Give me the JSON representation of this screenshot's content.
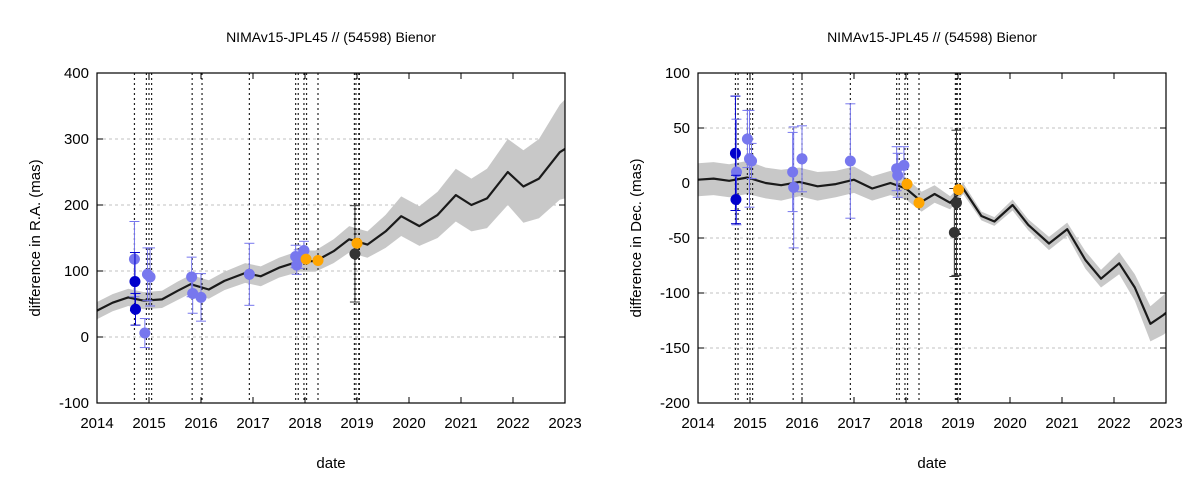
{
  "chart_data": [
    {
      "type": "line",
      "title": "NIMAv15-JPL45 // (54598) Bienor",
      "xlabel": "date",
      "ylabel": "difference in R.A. (mas)",
      "xlim": [
        2014,
        2023
      ],
      "ylim": [
        -100,
        400
      ],
      "xticks": [
        "2014",
        "2015",
        "2016",
        "2017",
        "2018",
        "2019",
        "2020",
        "2021",
        "2022",
        "2023"
      ],
      "yticks": [
        "-100",
        "0",
        "100",
        "200",
        "300",
        "400"
      ],
      "grid": "horizontal dashed",
      "colors": {
        "model": "#1a1a1a",
        "band": "#c8c8c8",
        "dark_blue": "#0000cc",
        "light_blue": "#7777ee",
        "orange": "#ffa500",
        "black": "#333333"
      },
      "series": [
        {
          "x": [
            2014.0,
            2014.3,
            2014.6,
            2014.9,
            2015.25,
            2015.55,
            2015.8,
            2016.15,
            2016.45,
            2016.85,
            2017.15,
            2017.5,
            2017.9,
            2018.2,
            2018.55,
            2018.85,
            2019.2,
            2019.55,
            2019.85,
            2020.2,
            2020.55,
            2020.9,
            2021.2,
            2021.5,
            2021.9,
            2022.2,
            2022.5,
            2022.9,
            2023.0
          ],
          "values": [
            40,
            52,
            60,
            55,
            57,
            70,
            80,
            72,
            85,
            97,
            92,
            105,
            115,
            115,
            130,
            148,
            140,
            160,
            183,
            168,
            185,
            215,
            200,
            210,
            250,
            228,
            240,
            280,
            285
          ],
          "band": [
            13,
            13,
            13,
            13,
            13,
            14,
            14,
            14,
            14,
            15,
            15,
            15,
            16,
            16,
            18,
            20,
            20,
            25,
            30,
            30,
            35,
            40,
            40,
            45,
            50,
            55,
            60,
            72,
            75
          ]
        }
      ],
      "vlines": [
        {
          "x": 2014.72,
          "dark": false
        },
        {
          "x": 2014.95,
          "dark": false
        },
        {
          "x": 2015.0,
          "dark": false
        },
        {
          "x": 2015.05,
          "dark": false
        },
        {
          "x": 2015.83,
          "dark": false
        },
        {
          "x": 2016.02,
          "dark": false
        },
        {
          "x": 2016.93,
          "dark": false
        },
        {
          "x": 2017.82,
          "dark": false
        },
        {
          "x": 2017.87,
          "dark": false
        },
        {
          "x": 2017.98,
          "dark": false
        },
        {
          "x": 2018.03,
          "dark": false
        },
        {
          "x": 2018.25,
          "dark": false
        },
        {
          "x": 2018.95,
          "dark": false
        },
        {
          "x": 2018.98,
          "dark": false
        },
        {
          "x": 2019.04,
          "dark": true
        }
      ],
      "points": [
        {
          "x": 2014.72,
          "y": 118,
          "err": 57,
          "color": "light_blue"
        },
        {
          "x": 2014.73,
          "y": 84,
          "err": 44,
          "color": "dark_blue"
        },
        {
          "x": 2014.74,
          "y": 42,
          "err": 24,
          "color": "dark_blue"
        },
        {
          "x": 2014.97,
          "y": 95,
          "err": 40,
          "color": "light_blue"
        },
        {
          "x": 2015.02,
          "y": 91,
          "err": 44,
          "color": "light_blue"
        },
        {
          "x": 2014.92,
          "y": 6,
          "err": 22,
          "color": "light_blue"
        },
        {
          "x": 2015.82,
          "y": 91,
          "err": 30,
          "color": "light_blue"
        },
        {
          "x": 2015.84,
          "y": 66,
          "err": 30,
          "color": "light_blue"
        },
        {
          "x": 2016.0,
          "y": 60,
          "err": 36,
          "color": "light_blue"
        },
        {
          "x": 2016.93,
          "y": 95,
          "err": 47,
          "color": "light_blue"
        },
        {
          "x": 2017.82,
          "y": 122,
          "err": 17,
          "color": "light_blue"
        },
        {
          "x": 2017.84,
          "y": 109,
          "err": 14,
          "color": "light_blue"
        },
        {
          "x": 2017.88,
          "y": 118,
          "err": 14,
          "color": "light_blue"
        },
        {
          "x": 2017.98,
          "y": 131,
          "err": 14,
          "color": "light_blue"
        },
        {
          "x": 2018.02,
          "y": 118,
          "err": 0,
          "color": "orange"
        },
        {
          "x": 2018.25,
          "y": 116,
          "err": 0,
          "color": "orange"
        },
        {
          "x": 2018.96,
          "y": 126,
          "err": 73,
          "color": "black"
        },
        {
          "x": 2019.0,
          "y": 142,
          "err": 0,
          "color": "orange"
        }
      ]
    },
    {
      "type": "line",
      "title": "NIMAv15-JPL45 // (54598) Bienor",
      "xlabel": "date",
      "ylabel": "difference in Dec. (mas)",
      "xlim": [
        2014,
        2023
      ],
      "ylim": [
        -200,
        100
      ],
      "xticks": [
        "2014",
        "2015",
        "2016",
        "2017",
        "2018",
        "2019",
        "2020",
        "2021",
        "2022",
        "2023"
      ],
      "yticks": [
        "-200",
        "-150",
        "-100",
        "-50",
        "0",
        "50",
        "100"
      ],
      "grid": "horizontal dashed",
      "colors": {
        "model": "#1a1a1a",
        "band": "#c8c8c8",
        "dark_blue": "#0000cc",
        "light_blue": "#7777ee",
        "orange": "#ffa500",
        "black": "#333333"
      },
      "series": [
        {
          "x": [
            2014.0,
            2014.3,
            2014.6,
            2014.95,
            2015.3,
            2015.6,
            2015.95,
            2016.3,
            2016.65,
            2017.0,
            2017.35,
            2017.7,
            2018.0,
            2018.3,
            2018.55,
            2018.85,
            2019.1,
            2019.45,
            2019.7,
            2020.05,
            2020.35,
            2020.75,
            2021.1,
            2021.45,
            2021.75,
            2022.1,
            2022.4,
            2022.7,
            2022.95,
            2023.0
          ],
          "values": [
            3,
            4,
            2,
            5,
            0,
            -2,
            1,
            -3,
            -1,
            3,
            -5,
            0,
            -5,
            -17,
            -10,
            -18,
            -5,
            -30,
            -35,
            -20,
            -38,
            -55,
            -42,
            -70,
            -87,
            -73,
            -95,
            -128,
            -120,
            -118
          ],
          "band": [
            15,
            15,
            15,
            15,
            14,
            14,
            13,
            13,
            12,
            12,
            11,
            11,
            10,
            9,
            8,
            6,
            5,
            4,
            4,
            5,
            5,
            6,
            6,
            8,
            8,
            10,
            12,
            16,
            18,
            18
          ]
        }
      ],
      "vlines": [
        {
          "x": 2014.72,
          "dark": false
        },
        {
          "x": 2014.77,
          "dark": false
        },
        {
          "x": 2014.95,
          "dark": false
        },
        {
          "x": 2015.0,
          "dark": false
        },
        {
          "x": 2015.05,
          "dark": false
        },
        {
          "x": 2015.83,
          "dark": false
        },
        {
          "x": 2016.0,
          "dark": false
        },
        {
          "x": 2016.93,
          "dark": false
        },
        {
          "x": 2017.82,
          "dark": false
        },
        {
          "x": 2017.87,
          "dark": false
        },
        {
          "x": 2017.98,
          "dark": false
        },
        {
          "x": 2018.03,
          "dark": false
        },
        {
          "x": 2018.25,
          "dark": false
        },
        {
          "x": 2018.95,
          "dark": false
        },
        {
          "x": 2018.98,
          "dark": true
        },
        {
          "x": 2019.04,
          "dark": true
        }
      ],
      "points": [
        {
          "x": 2014.72,
          "y": 27,
          "err": 52,
          "color": "dark_blue"
        },
        {
          "x": 2014.74,
          "y": 10,
          "err": 48,
          "color": "light_blue"
        },
        {
          "x": 2014.73,
          "y": -15,
          "err": 22,
          "color": "dark_blue"
        },
        {
          "x": 2014.95,
          "y": 40,
          "err": 26,
          "color": "light_blue"
        },
        {
          "x": 2014.99,
          "y": 22,
          "err": 44,
          "color": "light_blue"
        },
        {
          "x": 2015.03,
          "y": 20,
          "err": 16,
          "color": "light_blue"
        },
        {
          "x": 2015.82,
          "y": 10,
          "err": 36,
          "color": "light_blue"
        },
        {
          "x": 2015.84,
          "y": -4,
          "err": 55,
          "color": "light_blue"
        },
        {
          "x": 2016.0,
          "y": 22,
          "err": 30,
          "color": "light_blue"
        },
        {
          "x": 2016.93,
          "y": 20,
          "err": 52,
          "color": "light_blue"
        },
        {
          "x": 2017.82,
          "y": 13,
          "err": 20,
          "color": "light_blue"
        },
        {
          "x": 2017.84,
          "y": 7,
          "err": 20,
          "color": "light_blue"
        },
        {
          "x": 2017.96,
          "y": 16,
          "err": 17,
          "color": "light_blue"
        },
        {
          "x": 2018.02,
          "y": -1,
          "err": 0,
          "color": "orange"
        },
        {
          "x": 2018.25,
          "y": -18,
          "err": 0,
          "color": "orange"
        },
        {
          "x": 2018.93,
          "y": -45,
          "err": 40,
          "color": "black"
        },
        {
          "x": 2018.97,
          "y": -18,
          "err": 66,
          "color": "black"
        },
        {
          "x": 2019.01,
          "y": -6,
          "err": 0,
          "color": "orange"
        }
      ]
    }
  ]
}
